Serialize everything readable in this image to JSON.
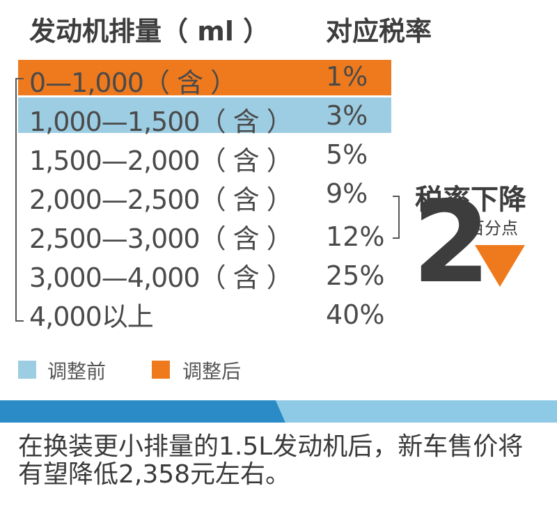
{
  "header": {
    "left": "发动机排量（ ml ）",
    "right": "对应税率"
  },
  "rows": [
    {
      "range": "0—1,000（ 含 ）",
      "rate": "1%"
    },
    {
      "range": "1,000—1,500（ 含 ）",
      "rate": "3%"
    },
    {
      "range": "1,500—2,000（ 含 ）",
      "rate": "5%"
    },
    {
      "range": "2,000—2,500（ 含 ）",
      "rate": "9%"
    },
    {
      "range": "2,500—3,000（ 含 ）",
      "rate": "12%"
    },
    {
      "range": "3,000—4,000（ 含 ）",
      "rate": "25%"
    },
    {
      "range": "4,000以上",
      "rate": "40%"
    }
  ],
  "callout": {
    "title": "税率下降",
    "number": "2",
    "unit": "百分点"
  },
  "legend": [
    {
      "label": "调整前",
      "color": "#9dcde2"
    },
    {
      "label": "调整后",
      "color": "#ef7a1d"
    }
  ],
  "footer": {
    "text": "在换装更小排量的1.5L发动机后，新车售价将有望降低2,358元左右。"
  },
  "colors": {
    "before": "#9dcde2",
    "after": "#ef7a1d",
    "band_dark": "#2a8bc6",
    "band_light": "#8ecae6"
  },
  "chart_data": {
    "type": "table",
    "columns": [
      "发动机排量（ ml ）",
      "对应税率"
    ],
    "rows": [
      [
        "0—1,000（ 含 ）",
        "1%"
      ],
      [
        "1,000—1,500（ 含 ）",
        "3%"
      ],
      [
        "1,500—2,000（ 含 ）",
        "5%"
      ],
      [
        "2,000—2,500（ 含 ）",
        "9%"
      ],
      [
        "2,500—3,000（ 含 ）",
        "12%"
      ],
      [
        "3,000—4,000（ 含 ）",
        "25%"
      ],
      [
        "4,000以上",
        "40%"
      ]
    ],
    "highlighted_rows": [
      {
        "row": 0,
        "legend": "调整后",
        "color": "#ef7a1d"
      },
      {
        "row": 1,
        "legend": "调整前",
        "color": "#9dcde2"
      }
    ]
  }
}
